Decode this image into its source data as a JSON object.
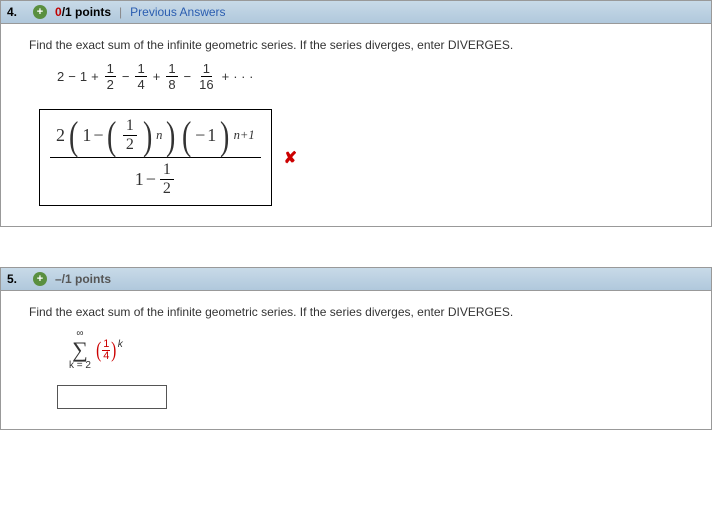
{
  "q4": {
    "number": "4.",
    "points_earned": "0",
    "points_total": "/1 points",
    "prev_answers": "Previous Answers",
    "prompt": "Find the exact sum of the infinite geometric series. If the series diverges, enter DIVERGES.",
    "series": {
      "t1": "2",
      "op1": "−",
      "t2": "1",
      "op2": "+",
      "f1n": "1",
      "f1d": "2",
      "op3": "−",
      "f2n": "1",
      "f2d": "4",
      "op4": "+",
      "f3n": "1",
      "f3d": "8",
      "op5": "−",
      "f4n": "1",
      "f4d": "16",
      "op6": "+",
      "dots": "· · ·"
    },
    "answer": {
      "coeff": "2",
      "one_a": "1",
      "minus_a": "−",
      "half_n": "1",
      "half_d": "2",
      "exp_n": "n",
      "neg1": "−",
      "one_b": "1",
      "exp_np1": "n+1",
      "one_c": "1",
      "minus_b": "−",
      "half2_n": "1",
      "half2_d": "2"
    },
    "mark": "✘"
  },
  "q5": {
    "number": "5.",
    "points_label": "–/1 points",
    "prompt": "Find the exact sum of the infinite geometric series. If the series diverges, enter DIVERGES.",
    "sigma": {
      "top": "∞",
      "bottom": "k = 2",
      "frac_n": "1",
      "frac_d": "4",
      "exp": "k"
    }
  },
  "colors": {
    "header_bg_top": "#c8dae8",
    "header_bg_bot": "#b0c8dc",
    "link": "#2a5db0",
    "error": "#c00000",
    "accent_red": "#cc0000"
  }
}
